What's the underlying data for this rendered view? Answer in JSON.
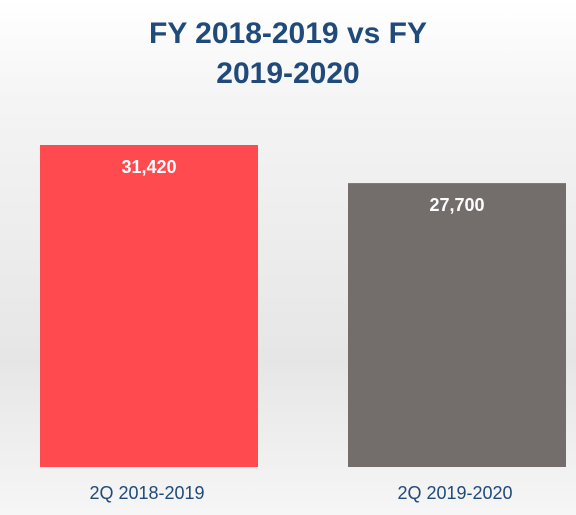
{
  "chart_data": {
    "type": "bar",
    "title": "FY 2018-2019 vs FY 2019-2020",
    "categories": [
      "2Q 2018-2019",
      "2Q 2019-2020"
    ],
    "values": [
      31420,
      27700
    ],
    "value_labels": [
      "31,420",
      "27,700"
    ],
    "colors": [
      "#ff4a4f",
      "#736d6c"
    ]
  }
}
